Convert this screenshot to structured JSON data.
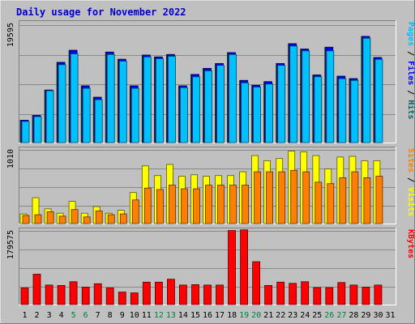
{
  "chart_data": {
    "type": "bar",
    "title": "Daily usage for November 2022",
    "colors": {
      "hits": "#006666",
      "files": "#0000ff",
      "pages": "#00c0ff",
      "visits": "#ffff00",
      "sites": "#ff8000",
      "kbytes": "#ff0000",
      "title": "#0000cc",
      "weekend": "#008040",
      "background": "#c0c0c0"
    },
    "days": [
      "1",
      "2",
      "3",
      "4",
      "5",
      "6",
      "7",
      "8",
      "9",
      "10",
      "11",
      "12",
      "13",
      "14",
      "15",
      "16",
      "17",
      "18",
      "19",
      "20",
      "21",
      "22",
      "23",
      "24",
      "25",
      "26",
      "27",
      "28",
      "29",
      "30",
      "31"
    ],
    "weekend_days": [
      "5",
      "6",
      "12",
      "13",
      "19",
      "20",
      "26",
      "27"
    ],
    "panels": [
      {
        "id": "hits-files-pages",
        "ymax_label": "19595",
        "ylim": [
          0,
          19595
        ],
        "legend": [
          {
            "text": "Hits",
            "color": "#006666"
          },
          {
            "text": "Files",
            "color": "#0000ff"
          },
          {
            "text": "Pages",
            "color": "#00c0ff"
          }
        ],
        "series": [
          {
            "name": "Hits",
            "color": "#006666",
            "values": [
              3700,
              4500,
              8700,
              13300,
              15300,
              9400,
              7500,
              15000,
              13800,
              9400,
              14500,
              14200,
              14600,
              9400,
              11300,
              12300,
              13100,
              14900,
              10300,
              9500,
              10100,
              13100,
              16400,
              15500,
              11200,
              15800,
              11000,
              10600,
              17600,
              14100,
              0
            ]
          },
          {
            "name": "Files",
            "color": "#0000ff",
            "values": [
              3700,
              4500,
              8700,
              13300,
              15300,
              9400,
              7500,
              15000,
              13800,
              9400,
              14500,
              14200,
              14600,
              9400,
              11300,
              12300,
              13100,
              14900,
              10300,
              9500,
              10100,
              13100,
              16400,
              15500,
              11200,
              15800,
              11000,
              10600,
              17600,
              14100,
              0
            ]
          },
          {
            "name": "Pages",
            "color": "#00c0ff",
            "values": [
              3500,
              4300,
              8600,
              12900,
              14700,
              9000,
              7100,
              14600,
              13500,
              9000,
              14200,
              13900,
              14300,
              9100,
              10900,
              11900,
              12800,
              14600,
              9900,
              9200,
              9700,
              12800,
              16000,
              15200,
              10900,
              15200,
              10600,
              10300,
              17300,
              13800,
              0
            ]
          }
        ]
      },
      {
        "id": "visits-sites",
        "ymax_label": "1010",
        "ylim": [
          0,
          1010
        ],
        "legend": [
          {
            "text": "Visits",
            "color": "#ffff00"
          },
          {
            "text": "Sites",
            "color": "#ff8000"
          }
        ],
        "series": [
          {
            "name": "Visits",
            "color": "#ffff00",
            "values": [
              130,
              350,
              200,
              140,
              300,
              140,
              230,
              140,
              180,
              420,
              780,
              650,
              800,
              640,
              660,
              640,
              650,
              650,
              700,
              920,
              850,
              880,
              980,
              970,
              920,
              740,
              900,
              910,
              850,
              850,
              0
            ]
          },
          {
            "name": "Sites",
            "color": "#ff8000",
            "values": [
              110,
              120,
              160,
              100,
              190,
              90,
              170,
              120,
              130,
              320,
              480,
              460,
              520,
              470,
              470,
              520,
              520,
              520,
              520,
              700,
              700,
              700,
              720,
              700,
              560,
              540,
              620,
              700,
              620,
              640,
              0
            ]
          }
        ]
      },
      {
        "id": "kbytes",
        "ymax_label": "179575",
        "ylim": [
          0,
          179575
        ],
        "legend": [
          {
            "text": "KBytes",
            "color": "#ff0000"
          }
        ],
        "series": [
          {
            "name": "KBytes",
            "color": "#ff0000",
            "values": [
              40000,
              73000,
              47000,
              46000,
              55000,
              42000,
              50000,
              40000,
              30000,
              28000,
              54000,
              54000,
              61000,
              47000,
              48000,
              47000,
              47000,
              178000,
              179575,
              103000,
              46000,
              54000,
              51000,
              55000,
              41000,
              41000,
              53000,
              47000,
              42000,
              47000,
              0
            ]
          }
        ]
      }
    ]
  }
}
